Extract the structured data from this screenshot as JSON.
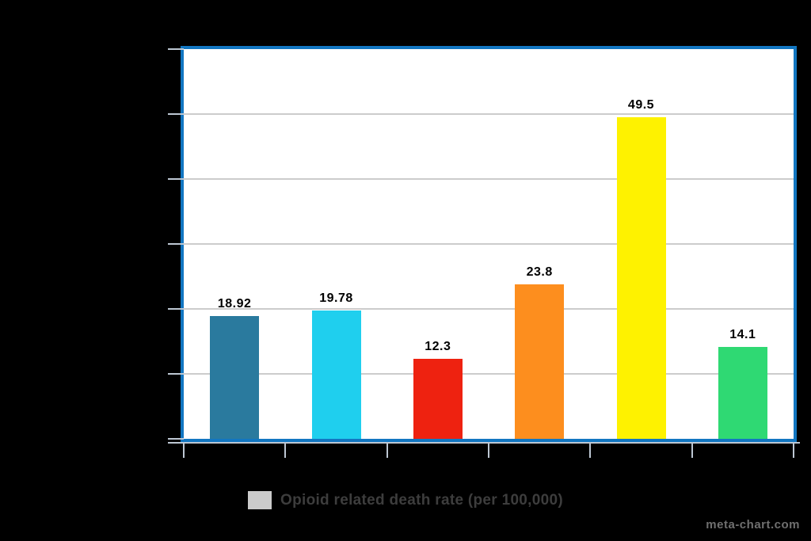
{
  "watermark": "meta-chart.com",
  "legend": {
    "label": "Opioid related death rate (per 100,000)",
    "swatch_color": "#cbcbcb"
  },
  "colors": {
    "background": "#000000",
    "plot_background": "#ffffff",
    "plot_border": "#1276c1",
    "gridline": "#cccccc",
    "axis_tick": "#bdc7d3",
    "value_label": "#000000",
    "legend_text": "#3d3d3d",
    "watermark_text": "#6f6f6f"
  },
  "chart_data": {
    "type": "bar",
    "title": "",
    "values": [
      18.92,
      19.78,
      12.3,
      23.8,
      49.5,
      14.1
    ],
    "value_labels": [
      "18.92",
      "19.78",
      "12.3",
      "23.8",
      "49.5",
      "14.1"
    ],
    "bar_colors": [
      "#2a7a9e",
      "#1fcfee",
      "#ee2210",
      "#fd8e1e",
      "#fef200",
      "#2fd973"
    ],
    "legend": "Opioid related death rate (per 100,000)",
    "legend_position": "bottom",
    "ylim": [
      0,
      60
    ],
    "y_gridline_step": 10,
    "grid": true,
    "x_tick_count": 7,
    "x_tick_labels_visible": false,
    "y_tick_labels_visible": false
  }
}
